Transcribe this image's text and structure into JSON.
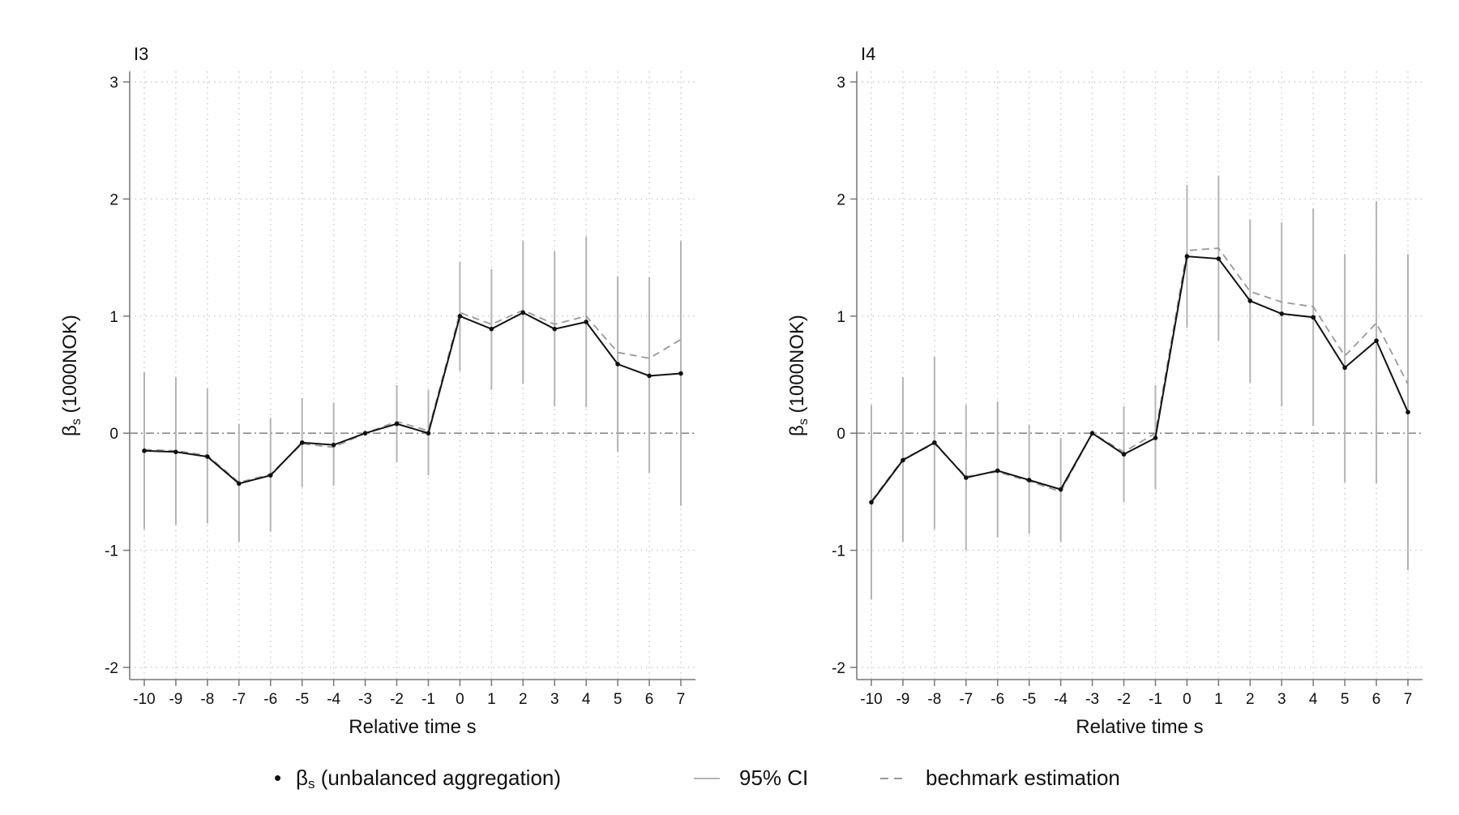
{
  "chart_data": [
    {
      "type": "line",
      "title": "I3",
      "xlabel": "Relative time s",
      "ylabel_main": "β",
      "ylabel_sub": "s",
      "ylabel_rest": " (1000NOK)",
      "xlim": [
        -10.5,
        7.5
      ],
      "ylim": [
        -2.1,
        3.05
      ],
      "x": [
        -10,
        -9,
        -8,
        -7,
        -6,
        -5,
        -4,
        -3,
        -2,
        -1,
        0,
        1,
        2,
        3,
        4,
        5,
        6,
        7
      ],
      "x_tick_labels": [
        "-10",
        "-9",
        "-8",
        "-7",
        "-6",
        "-5",
        "-4",
        "-3",
        "-2",
        "-1",
        "0",
        "1",
        "2",
        "3",
        "4",
        "5",
        "6",
        "7"
      ],
      "y_ticks": [
        -2,
        -1,
        0,
        1,
        2,
        3
      ],
      "y_tick_labels": [
        "-2",
        "-1",
        "0",
        "1",
        "2",
        "3"
      ],
      "series": [
        {
          "name": "βs (unbalanced aggregation)",
          "values": [
            -0.15,
            -0.16,
            -0.2,
            -0.43,
            -0.36,
            -0.08,
            -0.1,
            0.0,
            0.08,
            0.0,
            1.0,
            0.89,
            1.03,
            0.89,
            0.95,
            0.59,
            0.49,
            0.51
          ]
        },
        {
          "name": "bechmark estimation",
          "values": [
            -0.14,
            -0.15,
            -0.19,
            -0.42,
            -0.35,
            -0.09,
            -0.12,
            0.0,
            0.1,
            0.02,
            1.03,
            0.93,
            1.05,
            0.93,
            1.0,
            0.69,
            0.64,
            0.8
          ]
        }
      ],
      "ci_low": [
        -0.82,
        -0.78,
        -0.77,
        -0.93,
        -0.84,
        -0.46,
        -0.45,
        -0.02,
        -0.25,
        -0.36,
        0.53,
        0.37,
        0.42,
        0.23,
        0.22,
        -0.16,
        -0.34,
        -0.62
      ],
      "ci_high": [
        0.52,
        0.48,
        0.38,
        0.08,
        0.13,
        0.3,
        0.26,
        0.02,
        0.41,
        0.37,
        1.46,
        1.4,
        1.64,
        1.55,
        1.68,
        1.34,
        1.33,
        1.64
      ]
    },
    {
      "type": "line",
      "title": "I4",
      "xlabel": "Relative time s",
      "ylabel_main": "β",
      "ylabel_sub": "s",
      "ylabel_rest": " (1000NOK)",
      "xlim": [
        -10.5,
        7.5
      ],
      "ylim": [
        -2.1,
        3.05
      ],
      "x": [
        -10,
        -9,
        -8,
        -7,
        -6,
        -5,
        -4,
        -3,
        -2,
        -1,
        0,
        1,
        2,
        3,
        4,
        5,
        6,
        7
      ],
      "x_tick_labels": [
        "-10",
        "-9",
        "-8",
        "-7",
        "-6",
        "-5",
        "-4",
        "-3",
        "-2",
        "-1",
        "0",
        "1",
        "2",
        "3",
        "4",
        "5",
        "6",
        "7"
      ],
      "y_ticks": [
        -2,
        -1,
        0,
        1,
        2,
        3
      ],
      "y_tick_labels": [
        "-2",
        "-1",
        "0",
        "1",
        "2",
        "3"
      ],
      "series": [
        {
          "name": "βs (unbalanced aggregation)",
          "values": [
            -0.59,
            -0.23,
            -0.08,
            -0.38,
            -0.32,
            -0.4,
            -0.48,
            0.0,
            -0.18,
            -0.04,
            1.51,
            1.49,
            1.13,
            1.02,
            0.99,
            0.56,
            0.79,
            0.18
          ]
        },
        {
          "name": "bechmark estimation",
          "values": [
            -0.58,
            -0.22,
            -0.09,
            -0.37,
            -0.33,
            -0.41,
            -0.5,
            0.0,
            -0.16,
            0.0,
            1.56,
            1.58,
            1.21,
            1.12,
            1.08,
            0.66,
            0.94,
            0.42
          ]
        }
      ],
      "ci_low": [
        -1.42,
        -0.93,
        -0.82,
        -1.0,
        -0.89,
        -0.86,
        -0.93,
        -0.02,
        -0.59,
        -0.48,
        0.9,
        0.79,
        0.43,
        0.23,
        0.06,
        -0.42,
        -0.43,
        -1.17
      ],
      "ci_high": [
        0.24,
        0.48,
        0.65,
        0.24,
        0.27,
        0.07,
        -0.04,
        0.02,
        0.23,
        0.41,
        2.12,
        2.2,
        1.82,
        1.8,
        1.92,
        1.53,
        1.98,
        1.53
      ]
    }
  ],
  "legend": {
    "items": [
      {
        "marker": "•",
        "label_main": "β",
        "label_sub": "s",
        "label_rest": " (unbalanced aggregation)"
      },
      {
        "label": "95% CI"
      },
      {
        "label": "bechmark estimation"
      }
    ]
  },
  "colors": {
    "line": "#111111",
    "ci": "#b4b4b4",
    "benchmark": "#999999",
    "grid": "#c8c8c8",
    "zero": "#8a8a8a",
    "axis": "#777777"
  }
}
